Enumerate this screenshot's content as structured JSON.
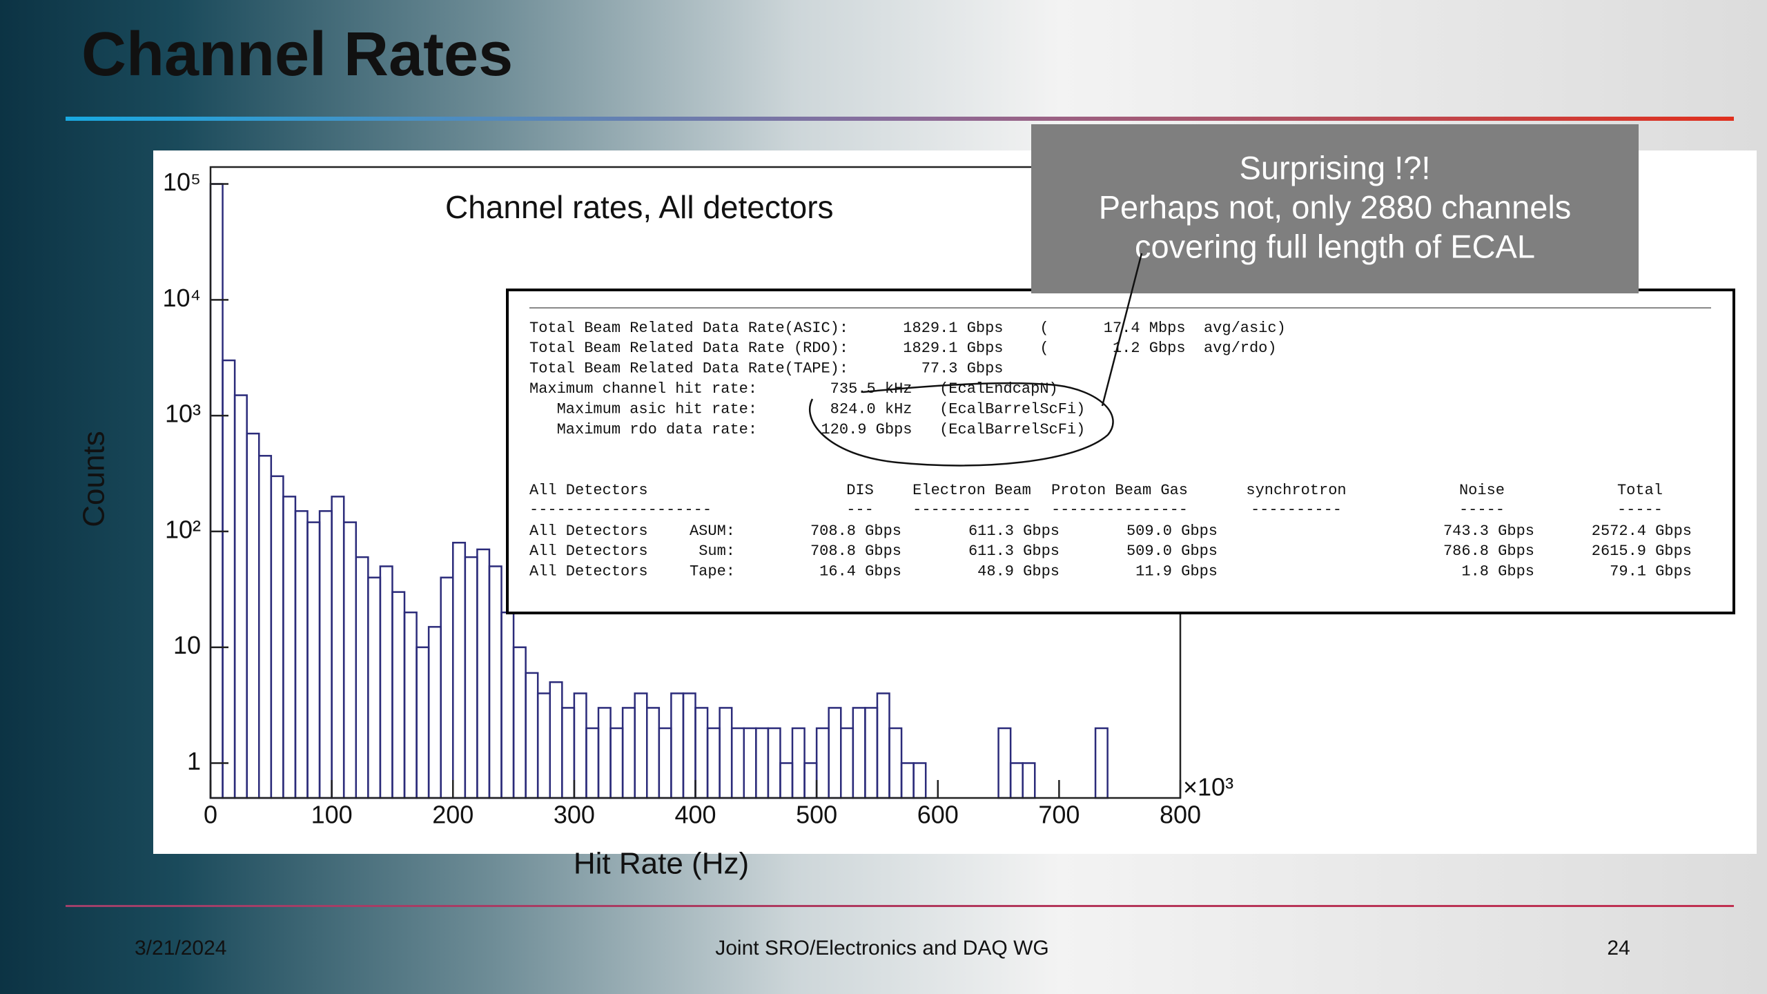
{
  "slide": {
    "title": "Channel Rates",
    "footer": {
      "date": "3/21/2024",
      "center": "Joint SRO/Electronics and DAQ WG",
      "page": "24"
    },
    "callout": [
      "Surprising !?!",
      "Perhaps not, only 2880 channels",
      "covering full length of ECAL"
    ],
    "summary": [
      "Total Beam Related Data Rate(ASIC):      1829.1 Gbps    (      17.4 Mbps  avg/asic)",
      "Total Beam Related Data Rate (RDO):      1829.1 Gbps    (       1.2 Gbps  avg/rdo)",
      "Total Beam Related Data Rate(TAPE):        77.3 Gbps",
      "Maximum channel hit rate:        735.5 kHz   (EcalEndcapN)",
      "   Maximum asic hit rate:        824.0 kHz   (EcalBarrelScFi)",
      "   Maximum rdo data rate:       120.9 Gbps   (EcalBarrelScFi)"
    ],
    "detectors": {
      "header": [
        "All Detectors",
        "DIS",
        "Electron Beam",
        "Proton Beam Gas",
        "synchrotron",
        "Noise",
        "Total"
      ],
      "rules": [
        "--------------------",
        "---",
        "-------------",
        "---------------",
        "----------",
        "-----",
        "-----"
      ],
      "rows": [
        [
          "All Detectors",
          "ASUM:",
          "708.8 Gbps",
          "611.3 Gbps",
          "509.0 Gbps",
          "743.3 Gbps",
          "2572.4 Gbps"
        ],
        [
          "All Detectors",
          "Sum:",
          "708.8 Gbps",
          "611.3 Gbps",
          "509.0 Gbps",
          "786.8 Gbps",
          "2615.9 Gbps"
        ],
        [
          "All Detectors",
          "Tape:",
          "16.4 Gbps",
          "48.9 Gbps",
          "11.9 Gbps",
          "1.8 Gbps",
          "79.1 Gbps"
        ]
      ]
    }
  },
  "chart_data": {
    "type": "histogram",
    "title": "Channel rates, All detectors",
    "x_label": "Hit Rate (Hz)",
    "x_scale_label": "×10³",
    "y_label": "Counts",
    "color": "#2b2b7a",
    "ylog": true,
    "bins": [
      0,
      10,
      20,
      30,
      40,
      50,
      60,
      70,
      80,
      90,
      100,
      110,
      120,
      130,
      140,
      150,
      160,
      170,
      180,
      190,
      200,
      210,
      220,
      230,
      240,
      250,
      260,
      270,
      280,
      290,
      300,
      310,
      320,
      330,
      340,
      350,
      360,
      370,
      380,
      390,
      400,
      410,
      420,
      430,
      440,
      450,
      460,
      470,
      480,
      490,
      500,
      510,
      520,
      530,
      540,
      550,
      560,
      570,
      580,
      590,
      600,
      610,
      620,
      630,
      640,
      650,
      660,
      670,
      680,
      690,
      700,
      710,
      720,
      730,
      740,
      750,
      760,
      770,
      780,
      790,
      800
    ],
    "values": [
      100000,
      3000,
      1500,
      700,
      450,
      300,
      200,
      150,
      120,
      150,
      200,
      120,
      60,
      40,
      50,
      30,
      20,
      10,
      15,
      40,
      80,
      60,
      70,
      50,
      20,
      10,
      6,
      4,
      5,
      3,
      4,
      2,
      3,
      2,
      3,
      4,
      3,
      2,
      4,
      4,
      3,
      2,
      3,
      2,
      2,
      2,
      2,
      1,
      2,
      1,
      2,
      3,
      2,
      3,
      3,
      4,
      2,
      1,
      1,
      0,
      0,
      0,
      0,
      0,
      0,
      2,
      1,
      1,
      0,
      0,
      0,
      0,
      0,
      2,
      0,
      0,
      0,
      0,
      0,
      0
    ],
    "xlim": [
      0,
      800
    ],
    "xticks": [
      0,
      100,
      200,
      300,
      400,
      500,
      600,
      700,
      800
    ],
    "ylim": [
      0.5,
      140000
    ],
    "yticks": [
      1,
      10,
      {
        "value": 100,
        "label": "10²"
      },
      {
        "value": 1000,
        "label": "10³"
      },
      {
        "value": 10000,
        "label": "10⁴"
      },
      {
        "value": 100000,
        "label": "10⁵"
      }
    ]
  }
}
